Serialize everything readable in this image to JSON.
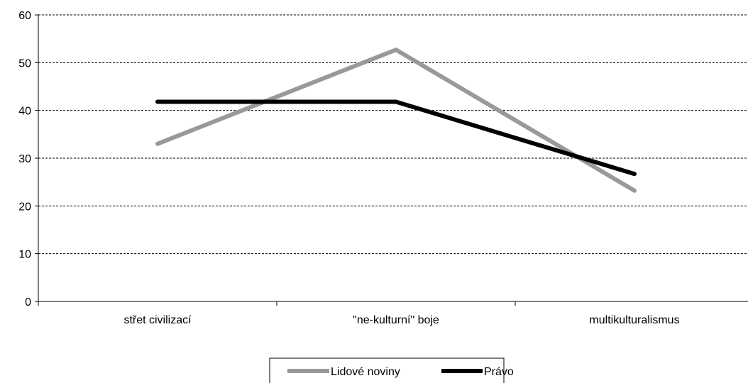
{
  "chart_data": {
    "type": "line",
    "categories": [
      "střet civilizací",
      "\"ne-kulturní\" boje",
      "multikulturalismus"
    ],
    "series": [
      {
        "name": "Lidové noviny",
        "values": [
          33,
          52.7,
          23.2
        ],
        "color": "#999999"
      },
      {
        "name": "Právo",
        "values": [
          41.8,
          41.8,
          26.7
        ],
        "color": "#000000"
      }
    ],
    "ylim": [
      0,
      60
    ],
    "yticks": [
      0,
      10,
      20,
      30,
      40,
      50,
      60
    ],
    "grid": "horizontal dashed",
    "legend": "bottom"
  }
}
